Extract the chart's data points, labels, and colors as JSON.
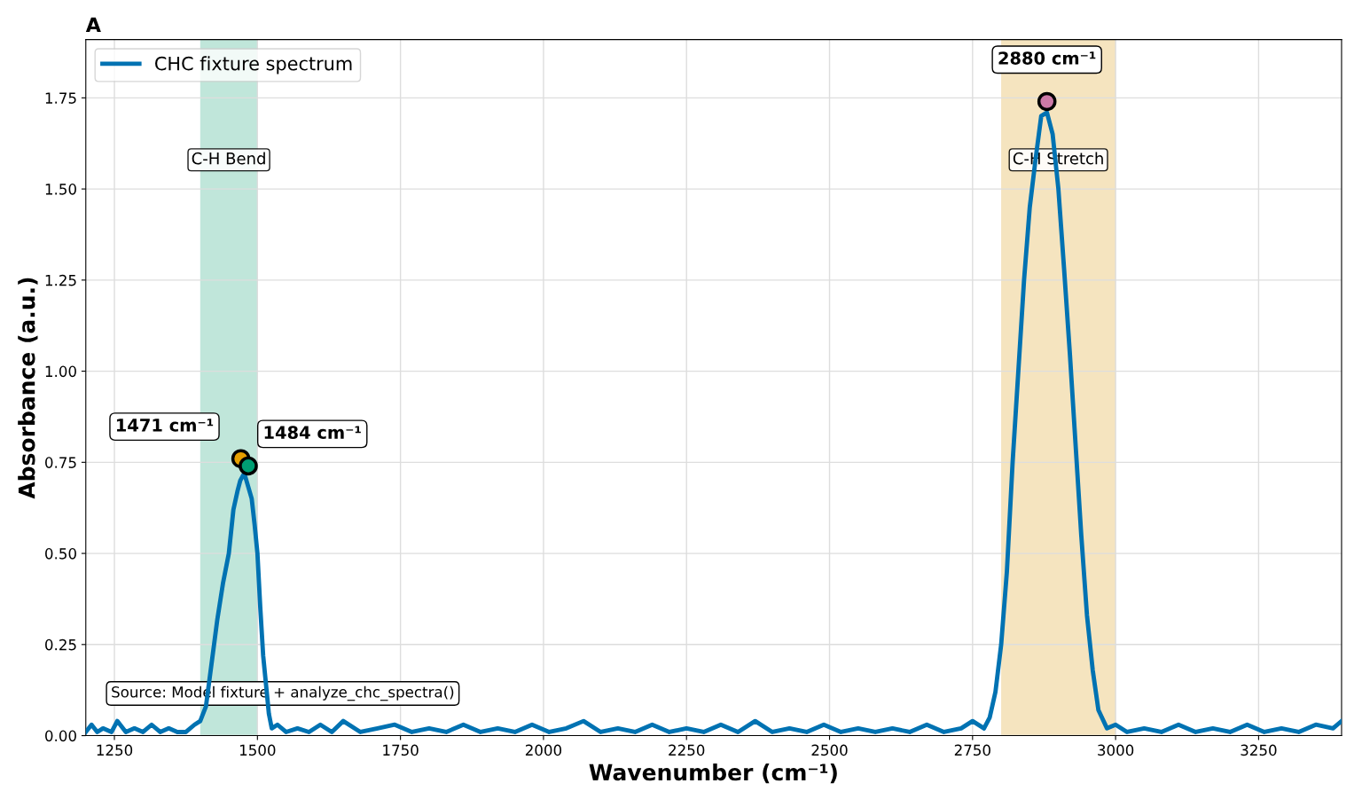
{
  "chart_data": {
    "type": "line",
    "xlabel": "Wavenumber (cm⁻¹)",
    "ylabel": "Absorbance (a.u.)",
    "xlim": [
      1200,
      3395
    ],
    "ylim": [
      0,
      1.91
    ],
    "xticks": [
      1250,
      1500,
      1750,
      2000,
      2250,
      2500,
      2750,
      3000,
      3250
    ],
    "yticks": [
      {
        "value": 0,
        "label": "0.00"
      },
      {
        "value": 0.25,
        "label": "0.25"
      },
      {
        "value": 0.5,
        "label": "0.50"
      },
      {
        "value": 0.75,
        "label": "0.75"
      },
      {
        "value": 1.0,
        "label": "1.00"
      },
      {
        "value": 1.25,
        "label": "1.25"
      },
      {
        "value": 1.5,
        "label": "1.50"
      },
      {
        "value": 1.75,
        "label": "1.75"
      }
    ],
    "grid": true,
    "legend": "top left",
    "series": [
      {
        "name": "CHC fixture spectrum",
        "color": "#0072b2",
        "line_style": "solid",
        "marker": "none",
        "x": [
          1200,
          1210,
          1220,
          1230,
          1245,
          1255,
          1270,
          1285,
          1300,
          1315,
          1330,
          1345,
          1360,
          1375,
          1390,
          1400,
          1410,
          1420,
          1430,
          1440,
          1450,
          1458,
          1465,
          1470,
          1477,
          1490,
          1495,
          1500,
          1505,
          1510,
          1515,
          1520,
          1525,
          1535,
          1550,
          1570,
          1590,
          1610,
          1630,
          1650,
          1680,
          1710,
          1740,
          1770,
          1800,
          1830,
          1860,
          1890,
          1920,
          1950,
          1980,
          2010,
          2040,
          2070,
          2100,
          2130,
          2160,
          2190,
          2220,
          2250,
          2280,
          2310,
          2340,
          2370,
          2400,
          2430,
          2460,
          2490,
          2520,
          2550,
          2580,
          2610,
          2640,
          2670,
          2700,
          2730,
          2750,
          2770,
          2780,
          2790,
          2800,
          2810,
          2820,
          2830,
          2840,
          2850,
          2860,
          2870,
          2880,
          2890,
          2900,
          2910,
          2920,
          2930,
          2940,
          2950,
          2960,
          2970,
          2985,
          3000,
          3020,
          3050,
          3080,
          3110,
          3140,
          3170,
          3200,
          3230,
          3260,
          3290,
          3320,
          3350,
          3380,
          3395
        ],
        "values": [
          0.01,
          0.03,
          0.01,
          0.02,
          0.01,
          0.04,
          0.01,
          0.02,
          0.01,
          0.03,
          0.01,
          0.02,
          0.01,
          0.01,
          0.03,
          0.04,
          0.08,
          0.2,
          0.32,
          0.42,
          0.5,
          0.62,
          0.67,
          0.7,
          0.72,
          0.65,
          0.58,
          0.5,
          0.35,
          0.22,
          0.14,
          0.06,
          0.02,
          0.03,
          0.01,
          0.02,
          0.01,
          0.03,
          0.01,
          0.04,
          0.01,
          0.02,
          0.03,
          0.01,
          0.02,
          0.01,
          0.03,
          0.01,
          0.02,
          0.01,
          0.03,
          0.01,
          0.02,
          0.04,
          0.01,
          0.02,
          0.01,
          0.03,
          0.01,
          0.02,
          0.01,
          0.03,
          0.01,
          0.04,
          0.01,
          0.02,
          0.01,
          0.03,
          0.01,
          0.02,
          0.01,
          0.02,
          0.01,
          0.03,
          0.01,
          0.02,
          0.04,
          0.02,
          0.05,
          0.12,
          0.25,
          0.45,
          0.75,
          1.0,
          1.25,
          1.45,
          1.58,
          1.7,
          1.71,
          1.65,
          1.5,
          1.28,
          1.05,
          0.8,
          0.55,
          0.33,
          0.18,
          0.07,
          0.02,
          0.03,
          0.01,
          0.02,
          0.01,
          0.03,
          0.01,
          0.02,
          0.01,
          0.03,
          0.01,
          0.02,
          0.01,
          0.03,
          0.02,
          0.04
        ]
      },
      {
        "type": "scatter",
        "x": [
          1471,
          1484,
          2880
        ],
        "values": [
          0.76,
          0.74,
          1.74
        ],
        "colors": [
          "#e69f00",
          "#009e73",
          "#cc79a7"
        ],
        "marker": "circle"
      }
    ],
    "bands": [
      {
        "axis": "x",
        "from": 1400,
        "to": 1500,
        "label": "C-H Bend",
        "color": "#c0e6da"
      },
      {
        "axis": "x",
        "from": 2800,
        "to": 3000,
        "label": "C-H Stretch",
        "color": "#f5e4bf"
      }
    ],
    "annotations": [
      {
        "text": "1471 cm⁻¹",
        "x": 1471,
        "y": 0.76
      },
      {
        "text": "1484 cm⁻¹",
        "x": 1484,
        "y": 0.74
      },
      {
        "text": "2880 cm⁻¹",
        "x": 2880,
        "y": 1.74
      },
      "A",
      "Source: Model fixture + analyze_chc_spectra()"
    ]
  }
}
